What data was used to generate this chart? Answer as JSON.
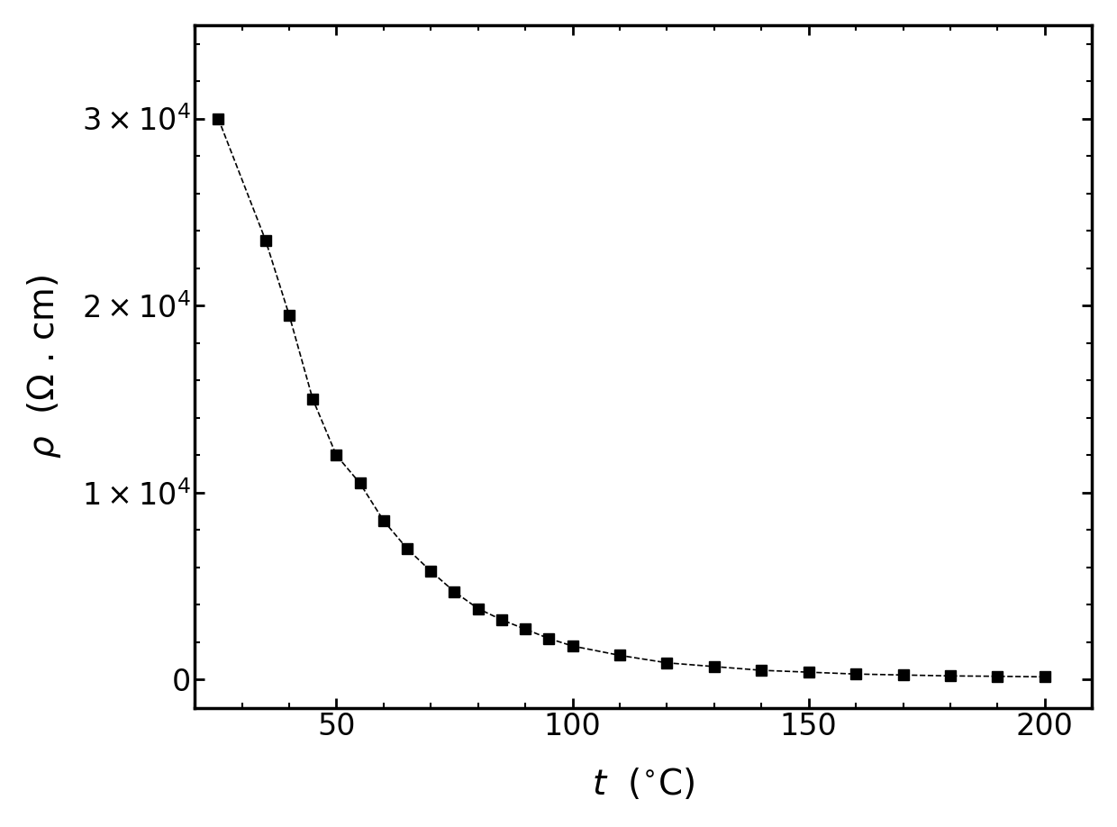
{
  "x": [
    25,
    35,
    40,
    45,
    50,
    55,
    60,
    65,
    70,
    75,
    80,
    85,
    90,
    95,
    100,
    110,
    120,
    130,
    140,
    150,
    160,
    170,
    180,
    190,
    200
  ],
  "y": [
    30000,
    23500,
    19500,
    15000,
    12000,
    10500,
    8500,
    7000,
    5800,
    4700,
    3800,
    3200,
    2700,
    2200,
    1800,
    1300,
    900,
    700,
    500,
    400,
    300,
    250,
    200,
    180,
    150
  ],
  "xlabel": "t  ($^{\\rm o}$C)",
  "ylabel": "$\\rho$ ($\\Omega$ . cm)",
  "xlim": [
    20,
    210
  ],
  "ylim": [
    -1500,
    35000
  ],
  "xticks": [
    50,
    100,
    150,
    200
  ],
  "yticks": [
    0,
    10000,
    20000,
    30000
  ],
  "ytick_labels": [
    "0",
    "1×10$^4$",
    "2×10$^4$",
    "3×10$^4$"
  ],
  "marker": "s",
  "marker_color": "black",
  "marker_size": 9,
  "line_style": "--",
  "line_color": "black",
  "line_width": 1.2,
  "background_color": "#ffffff",
  "spine_linewidth": 2.5,
  "tick_labelsize": 24,
  "axis_labelsize": 28
}
